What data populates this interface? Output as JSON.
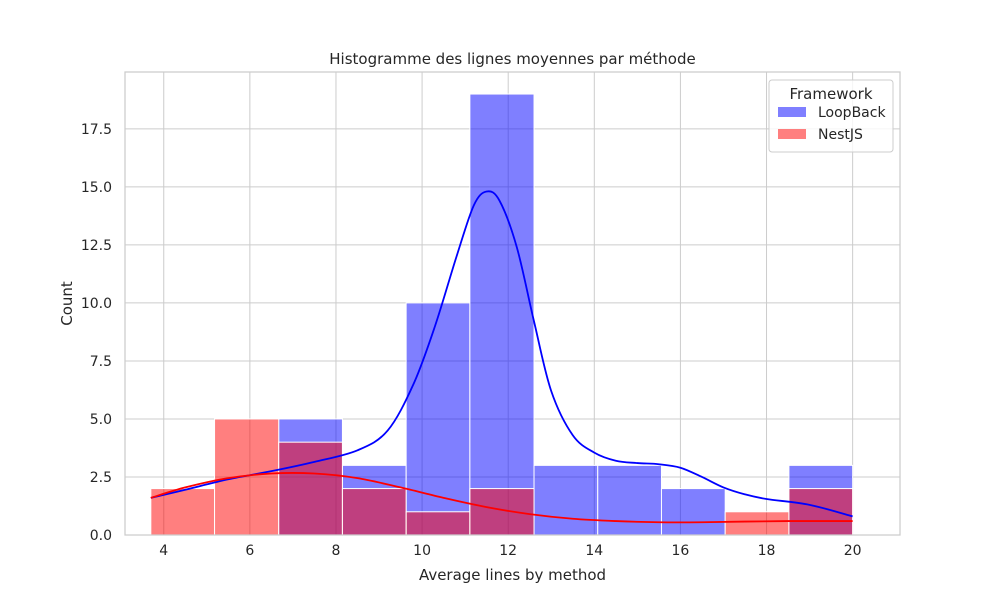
{
  "chart_data": {
    "type": "bar",
    "title": "Histogramme des lignes moyennes par méthode",
    "xlabel": "Average lines by method",
    "ylabel": "Count",
    "xlim": [
      3.1,
      21.1
    ],
    "ylim": [
      0,
      19.95
    ],
    "xticks": [
      4,
      6,
      8,
      10,
      12,
      14,
      16,
      18,
      20
    ],
    "xtick_labels": [
      "4",
      "6",
      "8",
      "10",
      "12",
      "14",
      "16",
      "18",
      "20"
    ],
    "yticks": [
      0,
      2.5,
      5,
      7.5,
      10,
      12.5,
      15,
      17.5
    ],
    "ytick_labels": [
      "0.0",
      "2.5",
      "5.0",
      "7.5",
      "10.0",
      "12.5",
      "15.0",
      "17.5"
    ],
    "grid": true,
    "stacked": false,
    "bin_edges": [
      3.7,
      5.18,
      6.67,
      8.15,
      9.63,
      11.11,
      12.6,
      14.08,
      15.56,
      17.04,
      18.52,
      20.0
    ],
    "legend": {
      "title": "Framework",
      "position": "top-right"
    },
    "series": [
      {
        "name": "LoopBack",
        "color": "#0000ff",
        "values": [
          0,
          0,
          5,
          3,
          10,
          19,
          3,
          3,
          2,
          0,
          3
        ],
        "kde": {
          "x": [
            3.7,
            4.5,
            5.5,
            6.5,
            7.5,
            8.5,
            9.2,
            9.8,
            10.3,
            10.8,
            11.2,
            11.5,
            11.8,
            12.2,
            12.6,
            13.0,
            13.5,
            14.0,
            14.5,
            15.0,
            15.5,
            16.0,
            16.5,
            17.0,
            17.5,
            18.0,
            19.0,
            20.0
          ],
          "y": [
            1.6,
            1.95,
            2.4,
            2.75,
            3.15,
            3.65,
            4.5,
            6.5,
            9.0,
            12.0,
            14.2,
            14.8,
            14.4,
            12.4,
            9.2,
            6.2,
            4.3,
            3.55,
            3.2,
            3.1,
            3.05,
            2.9,
            2.5,
            2.05,
            1.75,
            1.55,
            1.3,
            0.8
          ]
        }
      },
      {
        "name": "NestJS",
        "color": "#ff0000",
        "values": [
          2,
          5,
          4,
          2,
          1,
          2,
          0,
          0,
          0,
          1,
          2
        ],
        "kde": {
          "x": [
            3.7,
            4.5,
            5.5,
            6.5,
            7.5,
            8.5,
            9.5,
            10.5,
            11.5,
            12.5,
            13.5,
            14.5,
            15.5,
            16.5,
            17.5,
            18.5,
            19.5,
            20.0
          ],
          "y": [
            1.6,
            2.05,
            2.45,
            2.65,
            2.65,
            2.45,
            2.05,
            1.6,
            1.2,
            0.9,
            0.7,
            0.6,
            0.55,
            0.55,
            0.58,
            0.6,
            0.6,
            0.6
          ]
        }
      }
    ]
  }
}
